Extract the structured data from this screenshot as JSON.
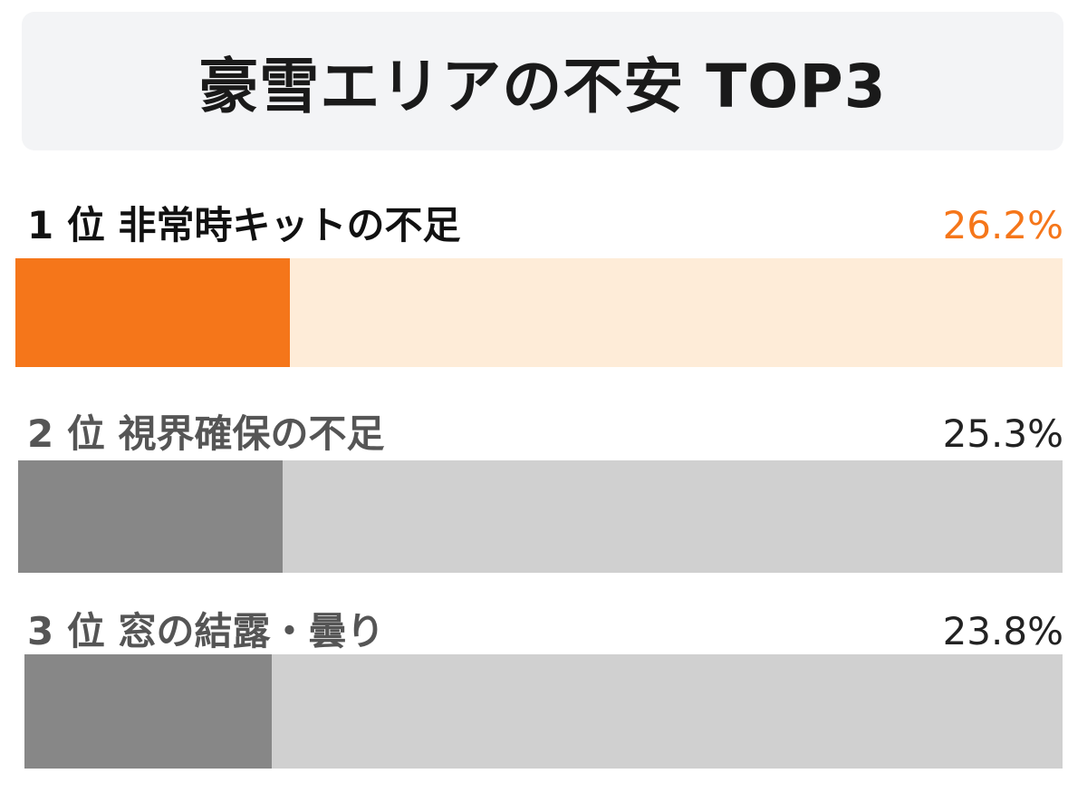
{
  "title": "豪雪エリアの不安 TOP3",
  "colors": {
    "highlight_fill": "#f5761a",
    "highlight_track": "#feecd8",
    "highlight_text": "#f5761a",
    "normal_fill": "#878787",
    "normal_track": "#d0d0d0",
    "rank1_label_text": "#111111",
    "normal_label_text": "#555555",
    "normal_value_text": "#222222"
  },
  "chart_data": {
    "type": "bar",
    "orientation": "horizontal",
    "title": "豪雪エリアの不安 TOP3",
    "value_unit": "%",
    "xlim": [
      0,
      100
    ],
    "categories": [
      "1 位 非常時キットの不足",
      "2 位 視界確保の不足",
      "3 位 窓の結露・曇り"
    ],
    "values": [
      26.2,
      25.3,
      23.8
    ],
    "value_labels": [
      "26.2%",
      "25.3%",
      "23.8%"
    ],
    "highlighted_index": 0
  }
}
